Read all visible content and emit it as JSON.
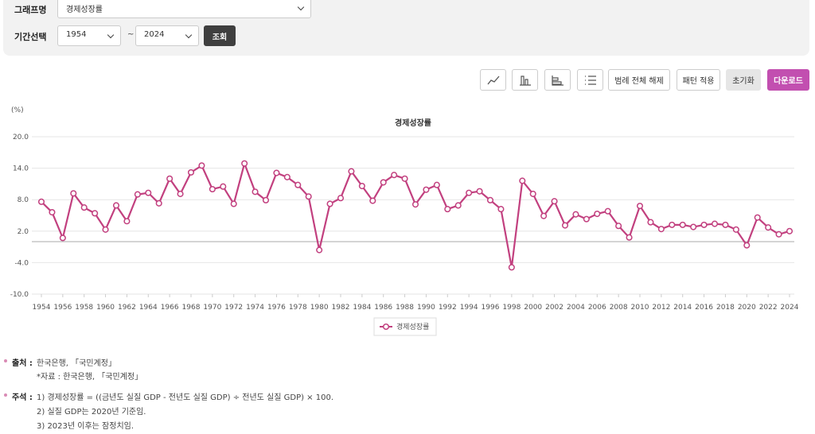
{
  "filters": {
    "graph_label": "그래프명",
    "graph_name": "경제성장률",
    "period_label": "기간선택",
    "start": "1954",
    "tilde": "~",
    "end": "2024",
    "search": "조회"
  },
  "toolbar": {
    "legend_off": "범례 전체 해제",
    "pattern": "패턴 적용",
    "reset": "초기화",
    "download": "다운로드"
  },
  "chart_data": {
    "type": "line",
    "title": "경제성장률",
    "y_unit": "(%)",
    "x": [
      1954,
      1955,
      1956,
      1957,
      1958,
      1959,
      1960,
      1961,
      1962,
      1963,
      1964,
      1965,
      1966,
      1967,
      1968,
      1969,
      1970,
      1971,
      1972,
      1973,
      1974,
      1975,
      1976,
      1977,
      1978,
      1979,
      1980,
      1981,
      1982,
      1983,
      1984,
      1985,
      1986,
      1987,
      1988,
      1989,
      1990,
      1991,
      1992,
      1993,
      1994,
      1995,
      1996,
      1997,
      1998,
      1999,
      2000,
      2001,
      2002,
      2003,
      2004,
      2005,
      2006,
      2007,
      2008,
      2009,
      2010,
      2011,
      2012,
      2013,
      2014,
      2015,
      2016,
      2017,
      2018,
      2019,
      2020,
      2021,
      2022,
      2023,
      2024
    ],
    "series": [
      {
        "name": "경제성장률",
        "color": "#c2407f",
        "values": [
          7.6,
          5.6,
          0.7,
          9.2,
          6.5,
          5.4,
          2.3,
          6.9,
          3.9,
          9.0,
          9.3,
          7.3,
          12.0,
          9.1,
          13.2,
          14.5,
          10.0,
          10.5,
          7.2,
          14.9,
          9.5,
          7.9,
          13.1,
          12.3,
          10.8,
          8.6,
          -1.6,
          7.2,
          8.3,
          13.4,
          10.6,
          7.8,
          11.3,
          12.7,
          12.0,
          7.1,
          9.9,
          10.8,
          6.2,
          6.9,
          9.3,
          9.6,
          7.9,
          6.2,
          -4.9,
          11.6,
          9.1,
          4.9,
          7.7,
          3.1,
          5.2,
          4.3,
          5.3,
          5.8,
          3.0,
          0.8,
          6.8,
          3.7,
          2.4,
          3.2,
          3.2,
          2.8,
          3.2,
          3.4,
          3.2,
          2.3,
          -0.7,
          4.6,
          2.7,
          1.4,
          2.0
        ]
      }
    ],
    "xlim": [
      1954,
      2024
    ],
    "xticks": [
      1954,
      1956,
      1958,
      1960,
      1962,
      1964,
      1966,
      1968,
      1970,
      1972,
      1974,
      1976,
      1978,
      1980,
      1982,
      1984,
      1986,
      1988,
      1990,
      1992,
      1994,
      1996,
      1998,
      2000,
      2002,
      2004,
      2006,
      2008,
      2010,
      2012,
      2014,
      2016,
      2018,
      2020,
      2022,
      2024
    ],
    "ylim": [
      -10,
      20
    ],
    "yticks": [
      {
        "value": -10,
        "label": "-10.0"
      },
      {
        "value": -4,
        "label": "-4.0"
      },
      {
        "value": 2,
        "label": "2.0"
      },
      {
        "value": 8,
        "label": "8.0"
      },
      {
        "value": 14,
        "label": "14.0"
      },
      {
        "value": 20,
        "label": "20.0"
      }
    ],
    "grid": true,
    "legend": "bottom"
  },
  "notes": {
    "source_label": "출처 :",
    "source": "한국은행, 「국민계정」",
    "source_sub": "*자료 : 한국은행, 「국민계정」",
    "note_label": "주석 :",
    "items": [
      "1) 경제성장률 = ((금년도 실질 GDP - 전년도 실질 GDP) ÷ 전년도 실질 GDP) × 100.",
      "2) 실질 GDP는 2020년 기준임.",
      "3) 2023년 이후는 잠정치임."
    ]
  }
}
